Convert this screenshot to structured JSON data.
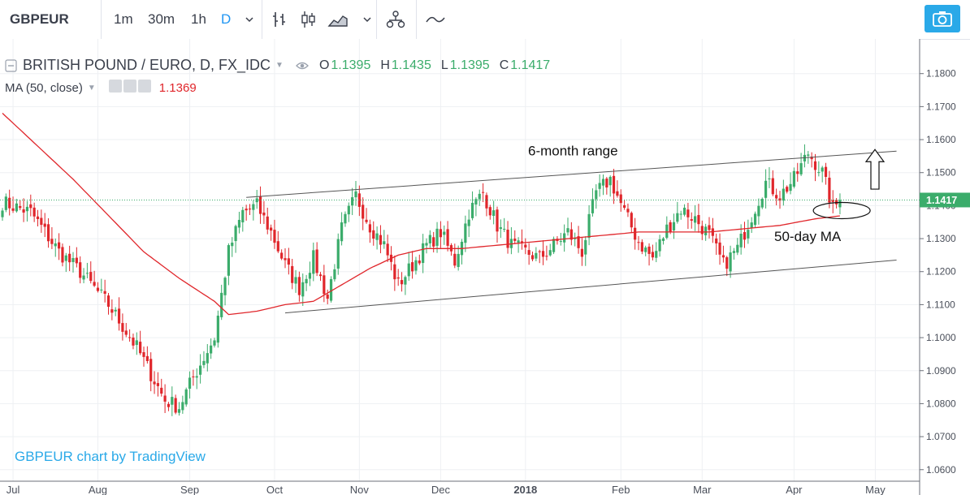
{
  "toolbar": {
    "symbol": "GBPEUR",
    "intervals": [
      "1m",
      "30m",
      "1h",
      "D"
    ],
    "active_interval": "D",
    "accent_color": "#2196f3",
    "icons": [
      "chevron-down-icon",
      "bar-chart-icon",
      "candlestick-icon",
      "area-chart-icon",
      "indicators-icon",
      "compare-icon",
      "snapshot-camera-icon"
    ]
  },
  "legend": {
    "title": "BRITISH POUND / EURO, D, FX_IDC",
    "open_label": "O",
    "open": "1.1395",
    "high_label": "H",
    "high": "1.1435",
    "low_label": "L",
    "low": "1.1395",
    "close_label": "C",
    "close": "1.1417",
    "ma_label": "MA (50, close)",
    "ma_value": "1.1369"
  },
  "watermark": "GBPEUR chart by TradingView",
  "chart_data": {
    "type": "candlestick",
    "price_axis_ticks": [
      "1.1800",
      "1.1700",
      "1.1600",
      "1.1500",
      "1.1400",
      "1.1300",
      "1.1200",
      "1.1100",
      "1.1000",
      "1.0900",
      "1.0800",
      "1.0700",
      "1.0600"
    ],
    "ylim": [
      1.0565,
      1.1905
    ],
    "last_price_label": "1.1417",
    "last_price": 1.1417,
    "time_axis_labels": [
      "Jul",
      "Aug",
      "Sep",
      "Oct",
      "Nov",
      "Dec",
      "2018",
      "Feb",
      "Mar",
      "Apr",
      "May"
    ],
    "ma_series_name": "MA (50, close)",
    "colors": {
      "up": "#3bac6b",
      "down": "#e0262b",
      "ma": "#e0262b",
      "last_price": "#3bac6b",
      "trendline": "#555555"
    },
    "annotations": [
      "6-month range",
      "50-day MA"
    ],
    "close_anchors": [
      [
        0,
        1.141
      ],
      [
        8,
        1.138
      ],
      [
        16,
        1.126
      ],
      [
        22,
        1.12
      ],
      [
        30,
        1.11
      ],
      [
        38,
        1.097
      ],
      [
        46,
        1.081
      ],
      [
        50,
        1.079
      ],
      [
        54,
        1.088
      ],
      [
        60,
        1.1
      ],
      [
        64,
        1.126
      ],
      [
        68,
        1.138
      ],
      [
        72,
        1.14
      ],
      [
        76,
        1.132
      ],
      [
        80,
        1.122
      ],
      [
        84,
        1.115
      ],
      [
        88,
        1.124
      ],
      [
        92,
        1.112
      ],
      [
        96,
        1.133
      ],
      [
        100,
        1.143
      ],
      [
        104,
        1.134
      ],
      [
        108,
        1.128
      ],
      [
        112,
        1.116
      ],
      [
        116,
        1.122
      ],
      [
        120,
        1.128
      ],
      [
        124,
        1.132
      ],
      [
        128,
        1.123
      ],
      [
        132,
        1.138
      ],
      [
        136,
        1.144
      ],
      [
        140,
        1.134
      ],
      [
        144,
        1.128
      ],
      [
        148,
        1.126
      ],
      [
        152,
        1.124
      ],
      [
        156,
        1.128
      ],
      [
        160,
        1.132
      ],
      [
        164,
        1.126
      ],
      [
        168,
        1.144
      ],
      [
        172,
        1.148
      ],
      [
        176,
        1.138
      ],
      [
        180,
        1.129
      ],
      [
        184,
        1.124
      ],
      [
        188,
        1.133
      ],
      [
        192,
        1.139
      ],
      [
        196,
        1.136
      ],
      [
        200,
        1.131
      ],
      [
        204,
        1.122
      ],
      [
        208,
        1.127
      ],
      [
        212,
        1.137
      ],
      [
        216,
        1.147
      ],
      [
        220,
        1.143
      ],
      [
        224,
        1.148
      ],
      [
        228,
        1.156
      ],
      [
        232,
        1.15
      ],
      [
        235,
        1.139
      ],
      [
        237,
        1.1417
      ]
    ],
    "ma_anchors": [
      [
        0,
        1.168
      ],
      [
        10,
        1.158
      ],
      [
        20,
        1.148
      ],
      [
        30,
        1.137
      ],
      [
        40,
        1.126
      ],
      [
        50,
        1.118
      ],
      [
        60,
        1.111
      ],
      [
        64,
        1.107
      ],
      [
        72,
        1.108
      ],
      [
        80,
        1.11
      ],
      [
        88,
        1.111
      ],
      [
        96,
        1.116
      ],
      [
        104,
        1.121
      ],
      [
        112,
        1.125
      ],
      [
        120,
        1.127
      ],
      [
        130,
        1.127
      ],
      [
        140,
        1.128
      ],
      [
        150,
        1.129
      ],
      [
        160,
        1.13
      ],
      [
        170,
        1.131
      ],
      [
        180,
        1.132
      ],
      [
        190,
        1.132
      ],
      [
        200,
        1.132
      ],
      [
        210,
        1.133
      ],
      [
        220,
        1.134
      ],
      [
        230,
        1.136
      ],
      [
        237,
        1.1369
      ]
    ],
    "range_lines": [
      {
        "from": [
          69,
          1.1425
        ],
        "to": [
          253,
          1.1565
        ]
      },
      {
        "from": [
          80,
          1.1075
        ],
        "to": [
          253,
          1.1235
        ]
      }
    ],
    "arrow_from": 1.145,
    "arrow_to": 1.157
  }
}
